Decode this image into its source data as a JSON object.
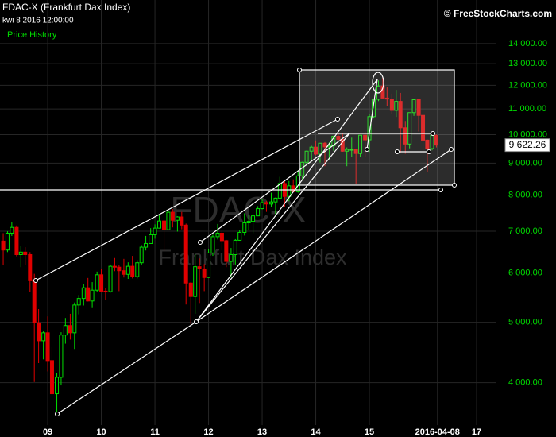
{
  "chart_data": {
    "type": "candlestick",
    "title": "FDAC-X (Frankfurt Dax Index)",
    "subtitle": "kwi 8 2016 12:00:00",
    "name": "Price History",
    "source": "© FreeStockCharts.com",
    "watermark": {
      "symbol": "FDAC-X",
      "name": "Frankfurt Dax Index"
    },
    "up_color": "#00e000",
    "down_color": "#e00000",
    "log_scale": true,
    "grid": true,
    "xlim": [
      2008.11,
      2017.37
    ],
    "ylim": [
      3420,
      16450
    ],
    "xticks": [
      {
        "value": 2009,
        "label": "09"
      },
      {
        "value": 2010,
        "label": "10"
      },
      {
        "value": 2011,
        "label": "11"
      },
      {
        "value": 2012,
        "label": "12"
      },
      {
        "value": 2013,
        "label": "13"
      },
      {
        "value": 2014,
        "label": "14"
      },
      {
        "value": 2015,
        "label": "15"
      },
      {
        "value": 2016.27,
        "label": "2016-04-08"
      },
      {
        "value": 2017,
        "label": "17"
      }
    ],
    "yticks": [
      {
        "value": 4000,
        "label": "4 000.00"
      },
      {
        "value": 5000,
        "label": "5 000.00"
      },
      {
        "value": 6000,
        "label": "6 000.00"
      },
      {
        "value": 7000,
        "label": "7 000.00"
      },
      {
        "value": 8000,
        "label": "8 000.00"
      },
      {
        "value": 9000,
        "label": "9 000.00"
      },
      {
        "value": 10000,
        "label": "10 000.00"
      },
      {
        "value": 11000,
        "label": "11 000.00"
      },
      {
        "value": 12000,
        "label": "12 000.00"
      },
      {
        "value": 13000,
        "label": "13 000.00"
      },
      {
        "value": 14000,
        "label": "14 000.00"
      }
    ],
    "last_price": {
      "value": 9622.26,
      "label": "9 622.26"
    },
    "x": [
      2008.17,
      2008.25,
      2008.33,
      2008.42,
      2008.5,
      2008.58,
      2008.67,
      2008.75,
      2008.83,
      2008.92,
      2009.0,
      2009.08,
      2009.17,
      2009.25,
      2009.33,
      2009.42,
      2009.5,
      2009.58,
      2009.67,
      2009.75,
      2009.83,
      2009.92,
      2010.0,
      2010.08,
      2010.17,
      2010.25,
      2010.33,
      2010.42,
      2010.5,
      2010.58,
      2010.67,
      2010.75,
      2010.83,
      2010.92,
      2011.0,
      2011.08,
      2011.17,
      2011.25,
      2011.33,
      2011.42,
      2011.5,
      2011.58,
      2011.67,
      2011.75,
      2011.83,
      2011.92,
      2012.0,
      2012.08,
      2012.17,
      2012.25,
      2012.33,
      2012.42,
      2012.5,
      2012.58,
      2012.67,
      2012.75,
      2012.83,
      2012.92,
      2013.0,
      2013.08,
      2013.17,
      2013.25,
      2013.33,
      2013.42,
      2013.5,
      2013.58,
      2013.67,
      2013.75,
      2013.83,
      2013.92,
      2014.0,
      2014.08,
      2014.17,
      2014.25,
      2014.33,
      2014.42,
      2014.5,
      2014.58,
      2014.67,
      2014.75,
      2014.83,
      2014.92,
      2015.0,
      2015.08,
      2015.17,
      2015.25,
      2015.33,
      2015.42,
      2015.5,
      2015.58,
      2015.67,
      2015.75,
      2015.83,
      2015.92,
      2016.0,
      2016.08,
      2016.17,
      2016.25
    ],
    "open": [
      6750,
      6530,
      6950,
      7100,
      6420,
      6480,
      6420,
      5830,
      4990,
      4670,
      4810,
      4340,
      3840,
      4080,
      4770,
      4940,
      4810,
      5330,
      5460,
      5680,
      5410,
      5630,
      5960,
      5610,
      5600,
      6150,
      6130,
      6050,
      5970,
      6150,
      5920,
      6230,
      6600,
      6690,
      6910,
      7080,
      7270,
      7040,
      7510,
      7290,
      7380,
      7160,
      5780,
      5500,
      6140,
      6090,
      5900,
      6460,
      6860,
      6950,
      6760,
      6260,
      6420,
      6770,
      6970,
      7220,
      7260,
      7410,
      7610,
      7780,
      7740,
      7800,
      7910,
      8350,
      7960,
      8280,
      8100,
      8590,
      9030,
      9410,
      9550,
      9310,
      9690,
      9560,
      9600,
      9940,
      9830,
      9410,
      9470,
      9470,
      9330,
      9980,
      9810,
      10690,
      11400,
      11970,
      11450,
      11410,
      10940,
      11310,
      10260,
      9660,
      10850,
      11380,
      10740,
      9800,
      9500,
      9970
    ],
    "high": [
      6950,
      7000,
      7230,
      7150,
      6620,
      6600,
      6480,
      5980,
      5250,
      4850,
      5110,
      4560,
      4150,
      4820,
      5080,
      5160,
      5380,
      5530,
      5760,
      5890,
      5800,
      6030,
      6090,
      5680,
      6190,
      6340,
      6170,
      6320,
      6240,
      6390,
      6290,
      6650,
      6880,
      7080,
      7180,
      7440,
      7310,
      7530,
      7600,
      7400,
      7520,
      7200,
      5800,
      6430,
      6330,
      6200,
      6560,
      6910,
      7190,
      7010,
      6780,
      6580,
      6800,
      7030,
      7480,
      7440,
      7440,
      7680,
      7870,
      7830,
      8070,
      7930,
      8560,
      8430,
      8430,
      8480,
      8770,
      9050,
      9430,
      9600,
      9790,
      9700,
      9730,
      9720,
      9960,
      10050,
      10030,
      9540,
      9890,
      9480,
      9980,
      10100,
      10810,
      11400,
      12220,
      12390,
      11920,
      11640,
      11800,
      11670,
      10520,
      10850,
      11430,
      11390,
      10750,
      9820,
      10100,
      10010
    ],
    "low": [
      6170,
      6480,
      6880,
      6380,
      6130,
      6180,
      5600,
      4010,
      4300,
      4360,
      4170,
      3830,
      3590,
      3960,
      4620,
      4690,
      4530,
      5150,
      5320,
      5400,
      5270,
      5600,
      5600,
      5430,
      5580,
      6040,
      5610,
      5900,
      5870,
      5880,
      5880,
      6170,
      6520,
      6690,
      6810,
      7070,
      6510,
      7030,
      7100,
      6990,
      7050,
      5340,
      4970,
      5160,
      5370,
      5610,
      5900,
      6390,
      6790,
      6520,
      6130,
      5920,
      6190,
      6760,
      6890,
      7040,
      6950,
      7400,
      7590,
      7520,
      7650,
      7460,
      7890,
      7650,
      7820,
      8100,
      8070,
      8470,
      8960,
      9050,
      9270,
      9020,
      8900,
      9110,
      9430,
      9750,
      9390,
      8900,
      9220,
      8350,
      9200,
      9220,
      9380,
      10620,
      11320,
      11520,
      11120,
      10790,
      10680,
      9340,
      9320,
      9510,
      10720,
      10120,
      9310,
      8700,
      9440,
      9540
    ],
    "close": [
      6530,
      6950,
      7100,
      6420,
      6480,
      6420,
      5830,
      4990,
      4670,
      4810,
      4340,
      3840,
      4080,
      4770,
      4940,
      4810,
      5330,
      5460,
      5680,
      5410,
      5630,
      5960,
      5610,
      5600,
      6150,
      6130,
      6050,
      5970,
      6150,
      5920,
      6230,
      6600,
      6690,
      6910,
      7080,
      7270,
      7040,
      7510,
      7290,
      7380,
      7160,
      5780,
      5500,
      6140,
      6090,
      5900,
      6460,
      6860,
      6950,
      6760,
      6260,
      6420,
      6770,
      6970,
      7220,
      7260,
      7410,
      7610,
      7780,
      7740,
      7800,
      7910,
      8350,
      7960,
      8280,
      8100,
      8590,
      9030,
      9410,
      9550,
      9310,
      9690,
      9560,
      9600,
      9940,
      9830,
      9410,
      9470,
      9470,
      9330,
      9980,
      9810,
      10690,
      11400,
      11970,
      11450,
      11410,
      10940,
      11310,
      10260,
      9660,
      10850,
      11380,
      10740,
      9800,
      9500,
      9970,
      9622.26
    ]
  }
}
